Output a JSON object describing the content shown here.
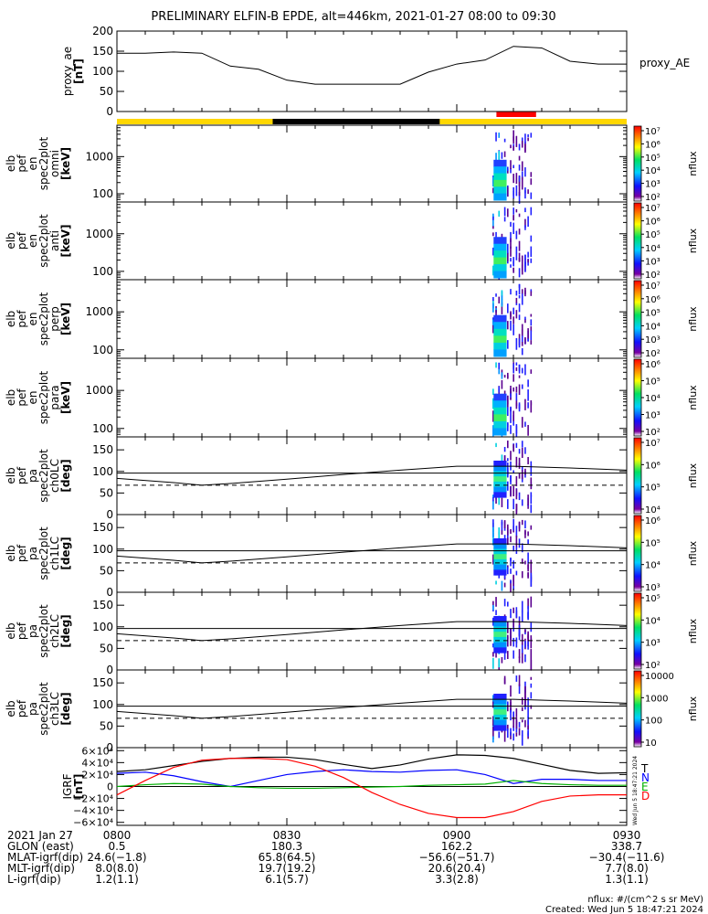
{
  "title": "PRELIMINARY ELFIN-B EPDE, alt=446km, 2021-01-27 08:00 to 09:30",
  "colors": {
    "sunlit_bar": "#ffd700",
    "eclipse_bar": "#000000",
    "science_zone_bar": "#ff0000",
    "igrf_t": "#000000",
    "igrf_n": "#0000ff",
    "igrf_e": "#00b000",
    "igrf_d": "#ff0000"
  },
  "panels": [
    {
      "id": "proxy_ae",
      "ylabel": [
        "proxy_ae",
        "[nT]"
      ],
      "right_label": "proxy_AE",
      "yticks": [
        "0",
        "50",
        "100",
        "150",
        "200"
      ]
    },
    {
      "id": "en_omni",
      "ylabel": [
        "elb",
        "pef",
        "en",
        "spec2plot",
        "omni",
        "[keV]"
      ],
      "yticks": [
        "100",
        "1000"
      ],
      "cbar_label": "nflux",
      "cbar_ticks": [
        "10²",
        "10³",
        "10⁴",
        "10⁵",
        "10⁶",
        "10⁷"
      ]
    },
    {
      "id": "en_anti",
      "ylabel": [
        "elb",
        "pef",
        "en",
        "spec2plot",
        "anti",
        "[keV]"
      ],
      "yticks": [
        "100",
        "1000"
      ],
      "cbar_label": "nflux",
      "cbar_ticks": [
        "10²",
        "10³",
        "10⁴",
        "10⁵",
        "10⁶",
        "10⁷"
      ]
    },
    {
      "id": "en_perp",
      "ylabel": [
        "elb",
        "pef",
        "en",
        "spec2plot",
        "perp",
        "[keV]"
      ],
      "yticks": [
        "100",
        "1000"
      ],
      "cbar_label": "nflux",
      "cbar_ticks": [
        "10²",
        "10³",
        "10⁴",
        "10⁵",
        "10⁶",
        "10⁷"
      ]
    },
    {
      "id": "en_para",
      "ylabel": [
        "elb",
        "pef",
        "en",
        "spec2plot",
        "para",
        "[keV]"
      ],
      "yticks": [
        "100",
        "1000"
      ],
      "cbar_label": "nflux",
      "cbar_ticks": [
        "10²",
        "10³",
        "10⁴",
        "10⁵",
        "10⁶"
      ]
    },
    {
      "id": "pa_ch0",
      "ylabel": [
        "elb",
        "pef",
        "pa",
        "spec2plot",
        "ch0LC",
        "[deg]"
      ],
      "yticks": [
        "0",
        "50",
        "100",
        "150"
      ],
      "cbar_label": "nflux",
      "cbar_ticks": [
        "10⁴",
        "10⁵",
        "10⁶",
        "10⁷"
      ]
    },
    {
      "id": "pa_ch1",
      "ylabel": [
        "elb",
        "pef",
        "pa",
        "spec2plot",
        "ch1LC",
        "[deg]"
      ],
      "yticks": [
        "0",
        "50",
        "100",
        "150"
      ],
      "cbar_label": "nflux",
      "cbar_ticks": [
        "10³",
        "10⁴",
        "10⁵",
        "10⁶"
      ]
    },
    {
      "id": "pa_ch2",
      "ylabel": [
        "elb",
        "pef",
        "pa",
        "spec2plot",
        "ch2LC",
        "[deg]"
      ],
      "yticks": [
        "0",
        "50",
        "100",
        "150"
      ],
      "cbar_label": "nflux",
      "cbar_ticks": [
        "10²",
        "10³",
        "10⁴",
        "10⁵"
      ]
    },
    {
      "id": "pa_ch3",
      "ylabel": [
        "elb",
        "pef",
        "pa",
        "spec2plot",
        "ch3LC",
        "[deg]"
      ],
      "yticks": [
        "0",
        "50",
        "100",
        "150"
      ],
      "cbar_label": "nflux",
      "cbar_ticks": [
        "10",
        "100",
        "1000",
        "10000"
      ]
    },
    {
      "id": "igrf",
      "ylabel": [
        "IGRF",
        "[nT]"
      ],
      "yticks": [
        "−6×10⁴",
        "−4×10⁴",
        "−2×10⁴",
        "0",
        "2×10⁴",
        "4×10⁴",
        "6×10⁴"
      ],
      "legend": [
        "T",
        "N",
        "E",
        "D"
      ]
    }
  ],
  "time_axis": {
    "ticks": [
      "0800",
      "0830",
      "0900",
      "0930"
    ],
    "rows": [
      {
        "label": "2021 Jan 27",
        "values": [
          "",
          "",
          "",
          ""
        ]
      },
      {
        "label": "GLON (east)",
        "values": [
          "0.5",
          "180.3",
          "162.2",
          "338.7"
        ]
      },
      {
        "label": "MLAT-igrf(dip)",
        "values": [
          "24.6(−1.8)",
          "65.8(64.5)",
          "−56.6(−51.7)",
          "−30.4(−11.6)"
        ]
      },
      {
        "label": "MLT-igrf(dip)",
        "values": [
          "8.0(8.0)",
          "19.7(19.2)",
          "20.6(20.4)",
          "7.7(8.0)"
        ]
      },
      {
        "label": "L-igrf(dip)",
        "values": [
          "1.2(1.1)",
          "6.1(5.7)",
          "3.3(2.8)",
          "1.3(1.1)"
        ]
      }
    ]
  },
  "footer": {
    "units": "nflux: #/(cm^2 s sr MeV)",
    "created": "Created: Wed Jun  5 18:47:21 2024",
    "side_stamp": "Wed Jun  5 18:47:21 2024"
  },
  "chart_data": [
    {
      "type": "line",
      "title": "",
      "ylabel": "proxy_ae [nT]",
      "ylim": [
        0,
        200
      ],
      "x": [
        "08:00",
        "08:05",
        "08:10",
        "08:15",
        "08:20",
        "08:25",
        "08:30",
        "08:35",
        "08:40",
        "08:45",
        "08:50",
        "08:55",
        "09:00",
        "09:05",
        "09:10",
        "09:15",
        "09:20",
        "09:25",
        "09:30"
      ],
      "series": [
        {
          "name": "proxy_AE",
          "values": [
            145,
            145,
            148,
            145,
            113,
            105,
            78,
            68,
            68,
            68,
            68,
            98,
            118,
            128,
            162,
            158,
            125,
            118,
            118
          ]
        }
      ]
    },
    {
      "type": "line",
      "title": "",
      "ylabel": "[deg]",
      "ylim": [
        0,
        180
      ],
      "x": [
        "08:00",
        "08:10",
        "08:15",
        "08:20",
        "08:30",
        "08:40",
        "08:50",
        "09:00",
        "09:10",
        "09:20",
        "09:30"
      ],
      "series": [
        {
          "values": [
            84,
            74,
            68,
            72,
            82,
            93,
            103,
            112,
            112,
            108,
            103
          ]
        },
        {
          "values": [
            96,
            96,
            96,
            96,
            96,
            96,
            96,
            96,
            96,
            96,
            96
          ]
        },
        {
          "values": [
            68,
            68,
            68,
            68,
            68,
            68,
            68,
            68,
            68,
            68,
            68
          ]
        }
      ]
    },
    {
      "type": "line",
      "title": "",
      "ylabel": "IGRF [nT]",
      "ylim": [
        -65000,
        65000
      ],
      "x": [
        "08:00",
        "08:05",
        "08:10",
        "08:15",
        "08:20",
        "08:25",
        "08:30",
        "08:35",
        "08:40",
        "08:45",
        "08:50",
        "08:55",
        "09:00",
        "09:05",
        "09:10",
        "09:15",
        "09:20",
        "09:25",
        "09:30"
      ],
      "series": [
        {
          "name": "T",
          "values": [
            25000,
            28000,
            35000,
            42000,
            47000,
            49000,
            49000,
            45000,
            37000,
            30000,
            36000,
            46000,
            53000,
            52000,
            47000,
            37000,
            27000,
            22000,
            23000
          ]
        },
        {
          "name": "N",
          "values": [
            22000,
            24000,
            18000,
            8000,
            0,
            10000,
            20000,
            25000,
            28000,
            25000,
            24000,
            27000,
            28000,
            20000,
            5000,
            12000,
            12000,
            10000,
            10000
          ]
        },
        {
          "name": "E",
          "values": [
            0,
            3000,
            5000,
            4000,
            0,
            -2000,
            -3000,
            -3000,
            -2000,
            -1000,
            0,
            2000,
            3000,
            4000,
            10000,
            5000,
            3000,
            2000,
            2000
          ]
        },
        {
          "name": "D",
          "values": [
            -14000,
            10000,
            32000,
            44000,
            47000,
            47000,
            45000,
            34000,
            15000,
            -10000,
            -30000,
            -45000,
            -52000,
            -52000,
            -42000,
            -25000,
            -16000,
            -14000,
            -14000
          ]
        }
      ]
    }
  ]
}
